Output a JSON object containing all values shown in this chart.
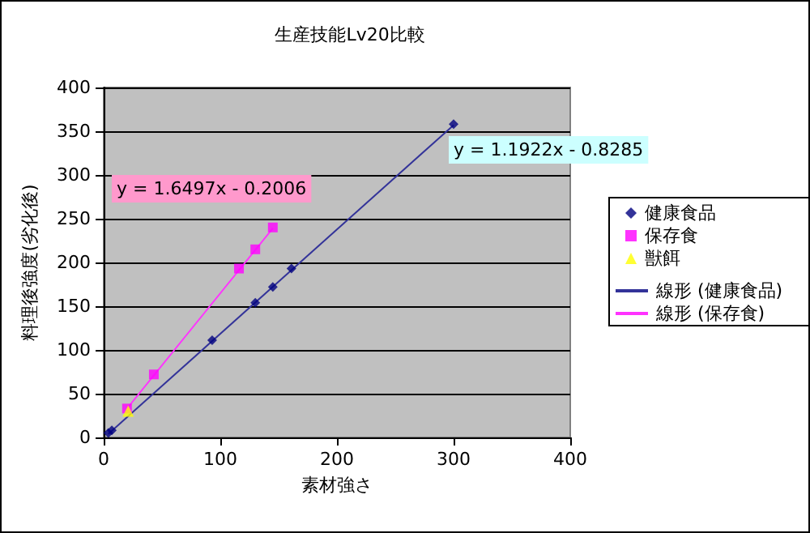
{
  "chart_data": {
    "type": "scatter",
    "title": "生産技能Lv20比較",
    "xlabel": "素材強さ",
    "ylabel": "料理後強度(劣化後)",
    "xlim": [
      0,
      400
    ],
    "xticks": [
      0,
      100,
      200,
      300,
      400
    ],
    "ylim": [
      0,
      400
    ],
    "yticks": [
      0,
      50,
      100,
      150,
      200,
      250,
      300,
      350,
      400
    ],
    "grid": "y",
    "legend": "right",
    "series": [
      {
        "name": "健康食品",
        "color": "#000080",
        "marker": "diamond",
        "x": [
          4,
          7,
          93,
          130,
          145,
          161,
          300
        ],
        "values": [
          5,
          8,
          111,
          154,
          172,
          193,
          358
        ]
      },
      {
        "name": "保存食",
        "color": "#ff00ff",
        "marker": "square",
        "x": [
          20,
          43,
          116,
          130,
          145
        ],
        "values": [
          33,
          72,
          193,
          215,
          240
        ]
      },
      {
        "name": "獣餌",
        "color": "#ffff00",
        "marker": "triangle",
        "x": [
          21
        ],
        "values": [
          30
        ]
      },
      {
        "name": "線形 (健康食品)",
        "type": "line",
        "color": "#333399",
        "marker": "none",
        "line_style": "solid",
        "x": [
          4,
          300
        ],
        "values": [
          4,
          357
        ]
      },
      {
        "name": "線形 (保存食)",
        "type": "line",
        "color": "#ff33ff",
        "marker": "none",
        "line_style": "solid",
        "x": [
          20,
          145
        ],
        "values": [
          33,
          239
        ]
      }
    ],
    "annotations": [
      "y = 1.1922x - 0.8285",
      "y = 1.6497x - 0.2006"
    ]
  }
}
